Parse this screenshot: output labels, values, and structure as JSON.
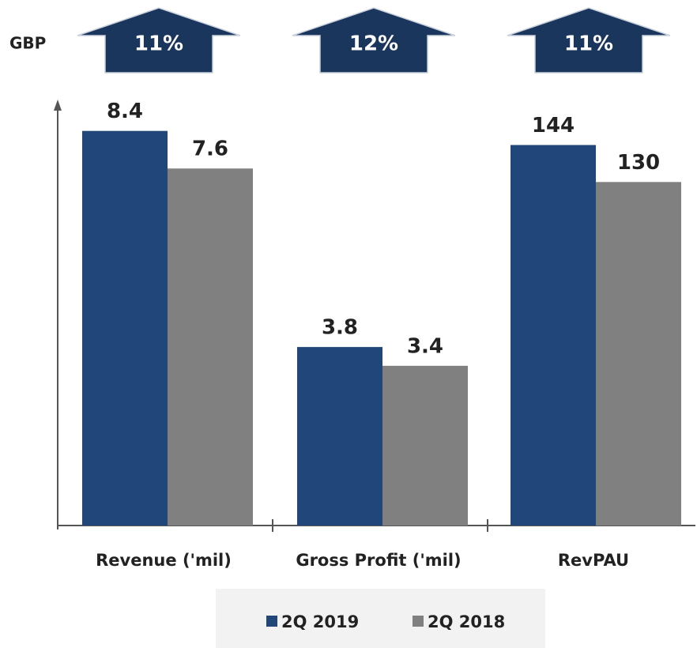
{
  "chart_data": {
    "type": "bar",
    "unit_label": "GBP",
    "categories": [
      "Revenue ('mil)",
      "Gross Profit ('mil)",
      "RevPAU"
    ],
    "category_axes": [
      "y",
      "y",
      "y2"
    ],
    "ylim": [
      0,
      9
    ],
    "y2lim": [
      0,
      160
    ],
    "annotations": [
      "11%",
      "12%",
      "11%"
    ],
    "series": [
      {
        "name": "2Q 2019",
        "color": "#21477a",
        "values": [
          8.4,
          3.8,
          144
        ]
      },
      {
        "name": "2Q 2018",
        "color": "#808080",
        "values": [
          7.6,
          3.4,
          130
        ]
      }
    ]
  }
}
